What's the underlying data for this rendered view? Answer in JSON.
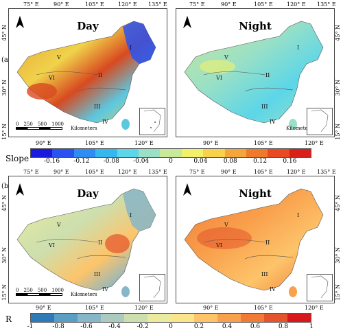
{
  "panel_a": {
    "letter": "(a)",
    "left_title": "Day",
    "right_title": "Night",
    "top_lon_labels_left": [
      "75° E",
      "90° E",
      "105° E",
      "120° E",
      "135° E"
    ],
    "top_lon_labels_right": [
      "75° E",
      "90° E",
      "105° E",
      "120° E",
      "135° E"
    ],
    "bottom_lon_labels_left": [
      "90° E",
      "105° E",
      "120° E"
    ],
    "bottom_lon_labels_right": [
      "90° E",
      "105° E",
      "120° E"
    ],
    "lat_labels_left": [
      "45° N",
      "30° N",
      "15° N"
    ],
    "lat_labels_right": [
      "45° N",
      "30° N",
      "15° N"
    ],
    "regions": [
      "I",
      "II",
      "III",
      "IV",
      "V",
      "VI"
    ],
    "scalebar_numbers": [
      "0",
      "250",
      "500",
      "1000"
    ],
    "scalebar_unit": "Kilometers",
    "legend": {
      "title": "Slope",
      "ticks": [
        "-0.16",
        "-0.12",
        "-0.08",
        "-0.04",
        "0",
        "0.04",
        "0.08",
        "0.12",
        "0.16"
      ],
      "colors": [
        "#1a1adc",
        "#2a52f0",
        "#2f8cf5",
        "#33b9f0",
        "#5cd6e8",
        "#9ae0c6",
        "#c8e89a",
        "#f2f26a",
        "#f8d24a",
        "#f5a63a",
        "#ef7a2c",
        "#e84a22",
        "#d81f1a"
      ]
    }
  },
  "panel_b": {
    "letter": "(b)",
    "left_title": "Day",
    "right_title": "Night",
    "top_lon_labels_left": [
      "75° E",
      "90° E",
      "105° E",
      "120° E",
      "135° E"
    ],
    "top_lon_labels_right": [
      "75° E",
      "90° E",
      "105° E",
      "120° E",
      "135° E"
    ],
    "bottom_lon_labels_left": [
      "90° E",
      "105° E",
      "120° E"
    ],
    "bottom_lon_labels_right": [
      "90° E",
      "105° E",
      "120° E"
    ],
    "lat_labels_left": [
      "45° N",
      "30° N",
      "15° N"
    ],
    "lat_labels_right": [
      "45° N",
      "30° N",
      "15° N"
    ],
    "regions": [
      "I",
      "II",
      "III",
      "IV",
      "V",
      "VI"
    ],
    "scalebar_numbers": [
      "0",
      "250",
      "500",
      "1000"
    ],
    "scalebar_unit": "Kilometers",
    "legend": {
      "title": "R",
      "ticks": [
        "-1",
        "-0.8",
        "-0.6",
        "-0.4",
        "-0.2",
        "0",
        "0.2",
        "0.4",
        "0.6",
        "0.8",
        "1"
      ],
      "colors": [
        "#2c7bb6",
        "#5b9ec4",
        "#86b6c8",
        "#abcbc0",
        "#cddfae",
        "#eaeb9e",
        "#fbe58a",
        "#fdc46a",
        "#f9a04c",
        "#f17b36",
        "#e4532a",
        "#d7191c"
      ]
    }
  },
  "colors": {
    "map_a_day": [
      "#f0d24a",
      "#e8a03a",
      "#d84a20",
      "#5cc8e0",
      "#2a52f0"
    ],
    "map_a_night": [
      "#9ae0c6",
      "#5cd6e8",
      "#c8e89a",
      "#f2f26a"
    ],
    "map_b_day": [
      "#eaeb9e",
      "#cddfae",
      "#fdc46a",
      "#86b6c8"
    ],
    "map_b_night": [
      "#f17b36",
      "#f9a04c",
      "#fdc46a",
      "#e4532a"
    ]
  }
}
